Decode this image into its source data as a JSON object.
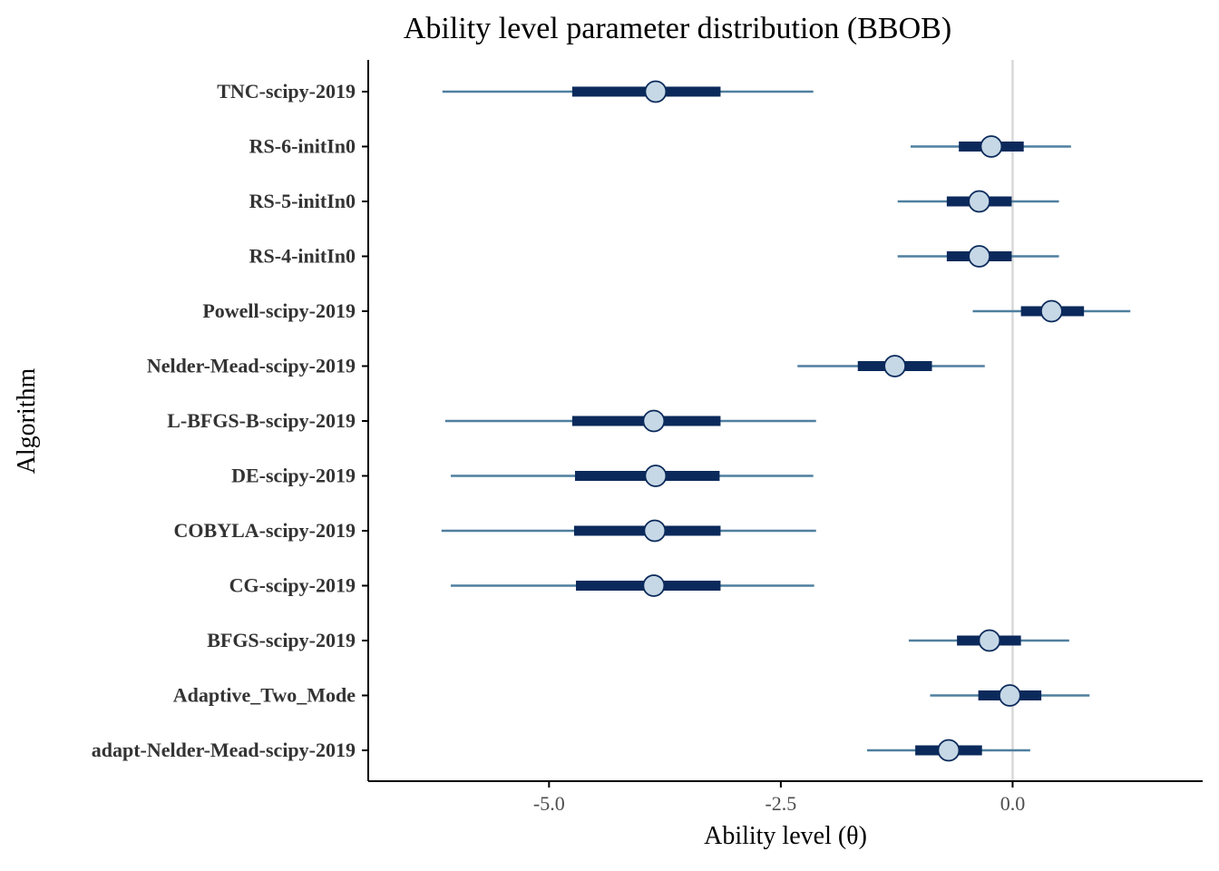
{
  "chart_data": {
    "type": "interval",
    "title": "Ability level parameter distribution (BBOB)",
    "xlabel": "Ability level (θ)",
    "ylabel": "Algorithm",
    "xlim": [
      -6.95,
      2.05
    ],
    "xticks": [
      -5.0,
      -2.5,
      0.0
    ],
    "xtick_labels": [
      "-5.0",
      "-2.5",
      "0.0"
    ],
    "reference_line": 0.0,
    "grid": false,
    "legend": "none",
    "colors": {
      "outer_interval": "#4f7f9f",
      "inner_interval": "#0b2a5b",
      "point_fill": "#c6d8e6",
      "point_stroke": "#0b2a5b",
      "reference_line": "#d9d9d9",
      "axis": "#000000",
      "label": "#333333"
    },
    "series": [
      {
        "name": "TNC-scipy-2019",
        "median": -3.85,
        "inner": [
          -4.75,
          -3.15
        ],
        "outer": [
          -6.15,
          -2.15
        ]
      },
      {
        "name": "RS-6-initIn0",
        "median": -0.23,
        "inner": [
          -0.58,
          0.12
        ],
        "outer": [
          -1.1,
          0.63
        ]
      },
      {
        "name": "RS-5-initIn0",
        "median": -0.36,
        "inner": [
          -0.71,
          -0.01
        ],
        "outer": [
          -1.24,
          0.5
        ]
      },
      {
        "name": "RS-4-initIn0",
        "median": -0.36,
        "inner": [
          -0.71,
          -0.01
        ],
        "outer": [
          -1.24,
          0.5
        ]
      },
      {
        "name": "Powell-scipy-2019",
        "median": 0.42,
        "inner": [
          0.09,
          0.77
        ],
        "outer": [
          -0.43,
          1.27
        ]
      },
      {
        "name": "Nelder-Mead-scipy-2019",
        "median": -1.27,
        "inner": [
          -1.67,
          -0.87
        ],
        "outer": [
          -2.32,
          -0.3
        ]
      },
      {
        "name": "L-BFGS-B-scipy-2019",
        "median": -3.87,
        "inner": [
          -4.75,
          -3.15
        ],
        "outer": [
          -6.12,
          -2.12
        ]
      },
      {
        "name": "DE-scipy-2019",
        "median": -3.85,
        "inner": [
          -4.72,
          -3.16
        ],
        "outer": [
          -6.06,
          -2.15
        ]
      },
      {
        "name": "COBYLA-scipy-2019",
        "median": -3.86,
        "inner": [
          -4.73,
          -3.15
        ],
        "outer": [
          -6.16,
          -2.12
        ]
      },
      {
        "name": "CG-scipy-2019",
        "median": -3.87,
        "inner": [
          -4.71,
          -3.15
        ],
        "outer": [
          -6.06,
          -2.14
        ]
      },
      {
        "name": "BFGS-scipy-2019",
        "median": -0.25,
        "inner": [
          -0.6,
          0.09
        ],
        "outer": [
          -1.12,
          0.61
        ]
      },
      {
        "name": "Adaptive_Two_Mode",
        "median": -0.03,
        "inner": [
          -0.37,
          0.31
        ],
        "outer": [
          -0.89,
          0.83
        ]
      },
      {
        "name": "adapt-Nelder-Mead-scipy-2019",
        "median": -0.69,
        "inner": [
          -1.05,
          -0.33
        ],
        "outer": [
          -1.57,
          0.19
        ]
      }
    ]
  }
}
